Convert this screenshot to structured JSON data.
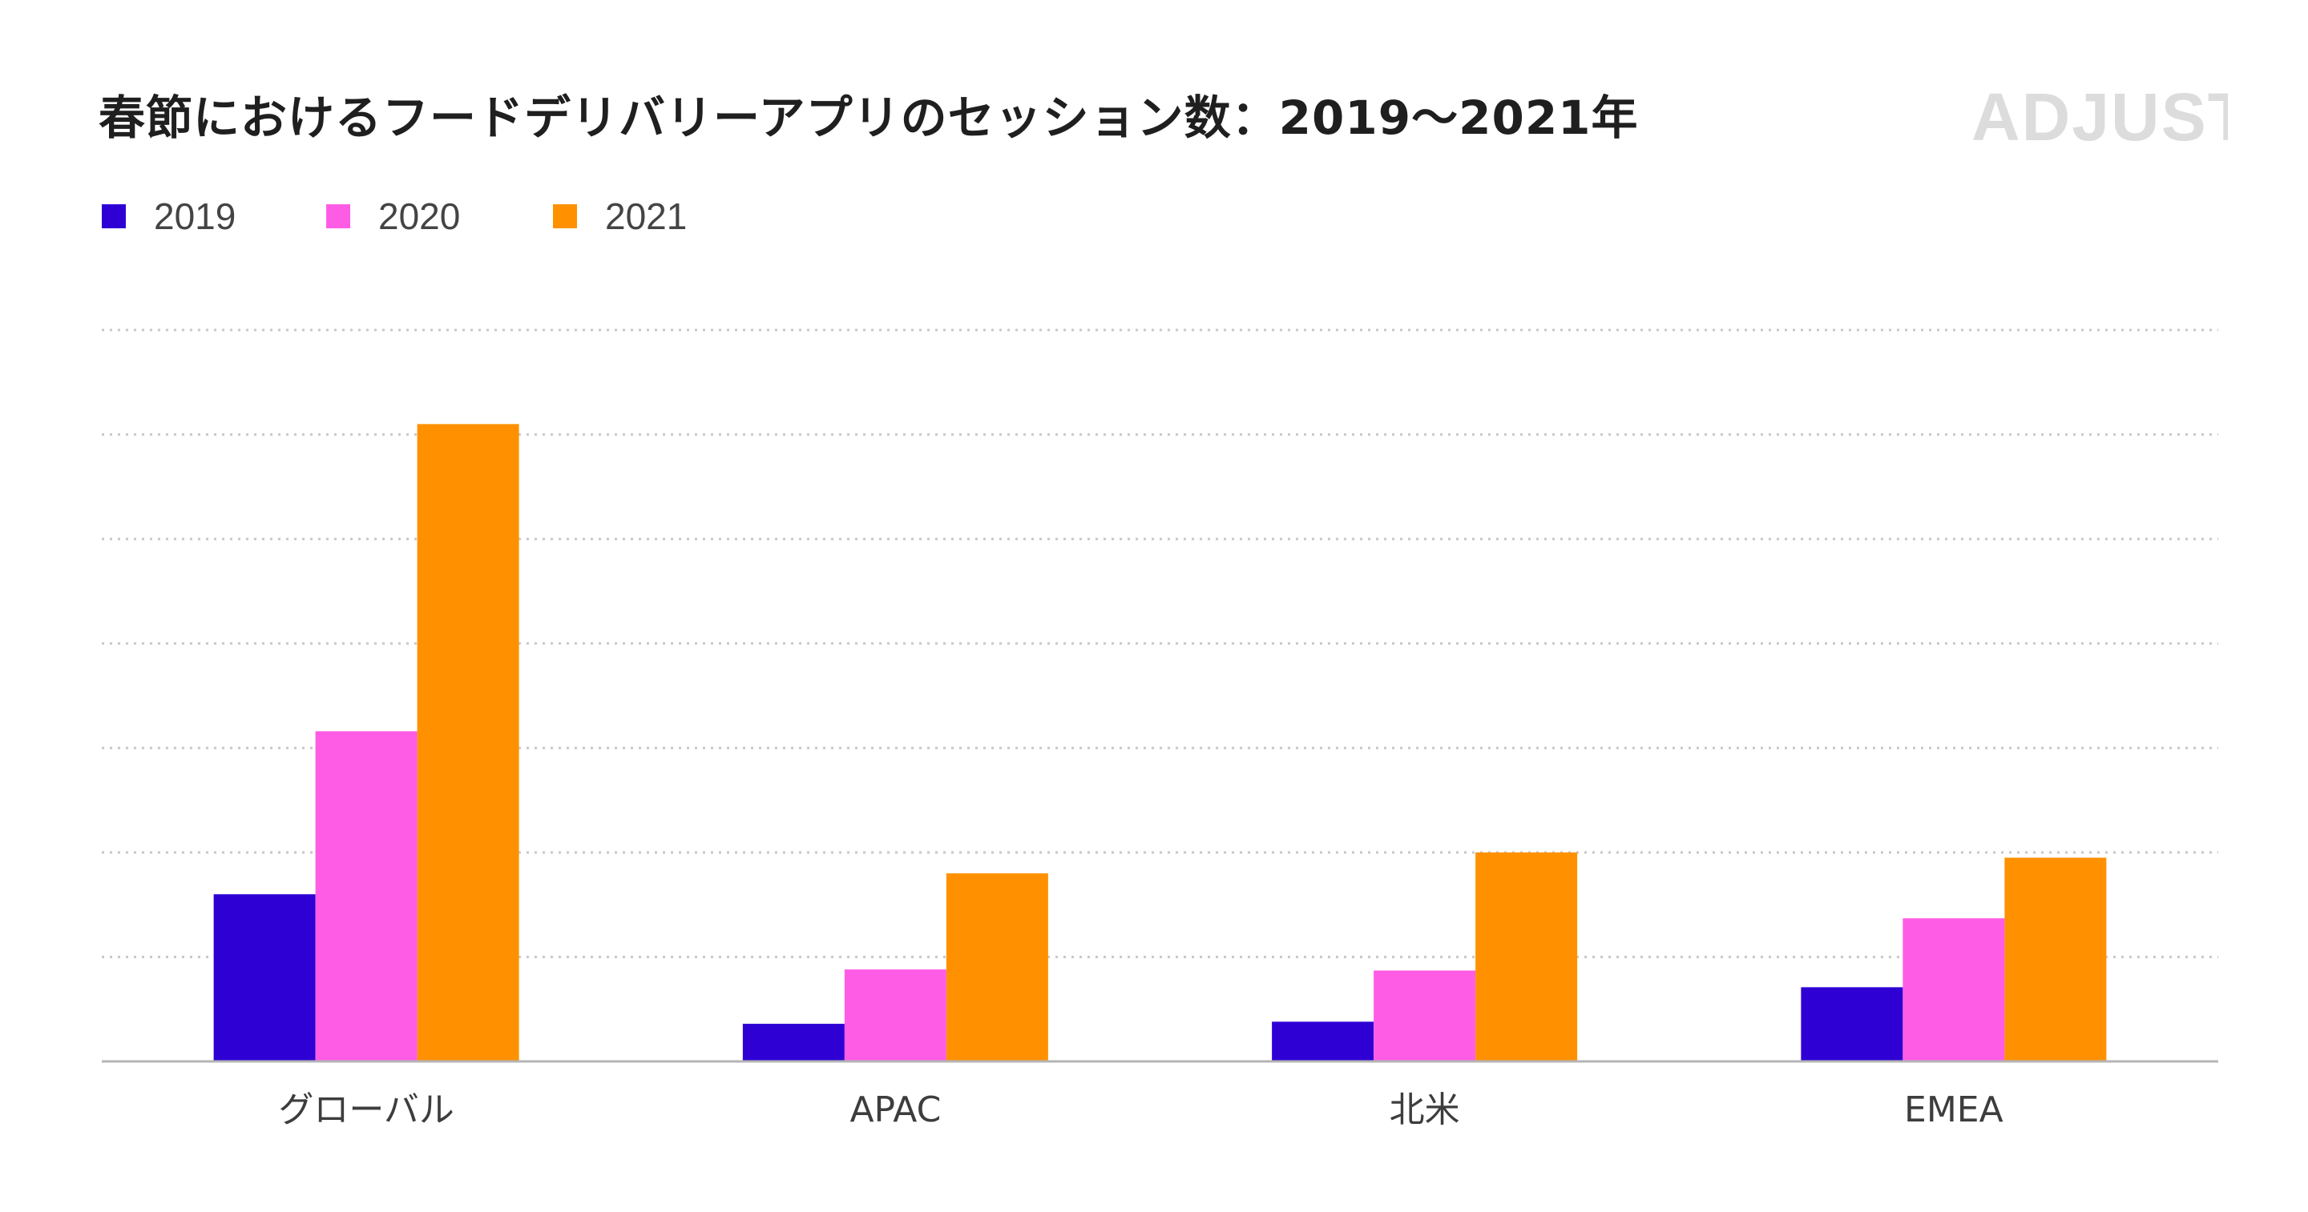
{
  "title": "春節におけるフードデリバリーアプリのセッション数：2019～2021年",
  "logo": {
    "text": "ADJUST",
    "color": "#dcdcdc"
  },
  "chart_data": {
    "type": "bar",
    "categories": [
      "グローバル",
      "APAC",
      "北米",
      "EMEA"
    ],
    "series": [
      {
        "name": "2019",
        "color": "#2e00d4",
        "values": [
          16,
          3.6,
          3.8,
          7.1
        ]
      },
      {
        "name": "2020",
        "color": "#ff5ce6",
        "values": [
          31.6,
          8.8,
          8.7,
          13.7
        ]
      },
      {
        "name": "2021",
        "color": "#ff9100",
        "values": [
          61,
          18,
          20,
          19.5
        ]
      }
    ],
    "ylim": [
      0,
      70
    ],
    "ytick_step": 10,
    "grid": true,
    "legend_position": "top-left"
  }
}
